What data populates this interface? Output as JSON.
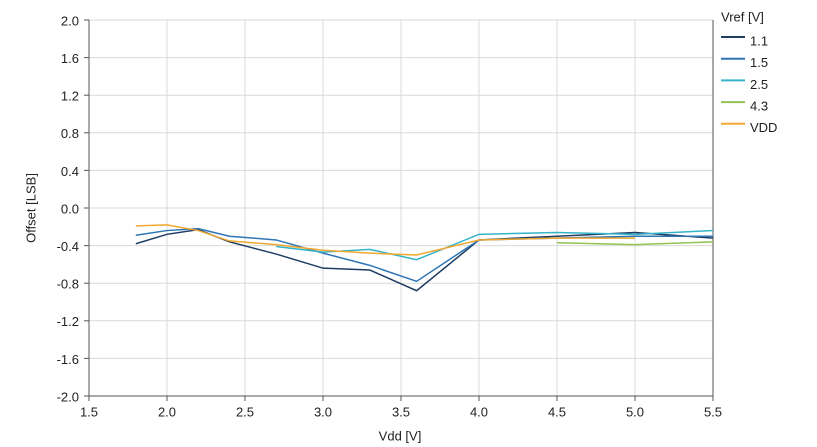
{
  "chart_data": {
    "type": "line",
    "x_label": "Vdd [V]",
    "y_label": "Offset [LSB]",
    "legend_title": "Vref [V]",
    "x": [
      1.8,
      2.0,
      2.2,
      2.4,
      2.7,
      3.0,
      3.3,
      3.6,
      4.0,
      4.5,
      5.0,
      5.5
    ],
    "series": [
      {
        "name": "1.1",
        "color": "#1f3c63",
        "values": [
          -0.38,
          -0.28,
          -0.23,
          -0.36,
          -0.49,
          -0.64,
          -0.66,
          -0.88,
          -0.34,
          -0.3,
          -0.26,
          -0.32
        ]
      },
      {
        "name": "1.5",
        "color": "#2e75b6",
        "values": [
          -0.29,
          -0.24,
          -0.22,
          -0.3,
          -0.34,
          -0.48,
          -0.61,
          -0.78,
          -0.34,
          -0.32,
          -0.3,
          -0.3
        ]
      },
      {
        "name": "2.5",
        "color": "#35b3c9",
        "values": [
          null,
          null,
          null,
          null,
          -0.41,
          -0.47,
          -0.44,
          -0.55,
          -0.28,
          -0.26,
          -0.28,
          -0.24
        ]
      },
      {
        "name": "4.3",
        "color": "#92c353",
        "values": [
          null,
          null,
          null,
          null,
          null,
          null,
          null,
          null,
          null,
          -0.37,
          -0.39,
          -0.36
        ]
      },
      {
        "name": "VDD",
        "color": "#f0a830",
        "values": [
          -0.19,
          -0.18,
          -0.24,
          -0.35,
          -0.39,
          -0.45,
          -0.48,
          -0.5,
          -0.34,
          -0.32,
          -0.32,
          null
        ]
      }
    ],
    "xlim": [
      1.5,
      5.5
    ],
    "xticks": [
      1.5,
      {
        "value": 2,
        "label": "2.0"
      },
      2.5,
      {
        "value": 3,
        "label": "3.0"
      },
      3.5,
      {
        "value": 4,
        "label": "4.0"
      },
      4.5,
      {
        "value": 5,
        "label": "5.0"
      },
      5.5
    ],
    "ylim": [
      -2,
      2
    ],
    "yticks": [
      {
        "value": -2,
        "label": "-2.0"
      },
      -1.6,
      -1.2,
      -0.8,
      -0.4,
      {
        "value": 0,
        "label": "0.0"
      },
      0.4,
      0.8,
      1.2,
      1.6,
      {
        "value": 2,
        "label": "2.0"
      }
    ],
    "grid": true,
    "legend": "right"
  }
}
